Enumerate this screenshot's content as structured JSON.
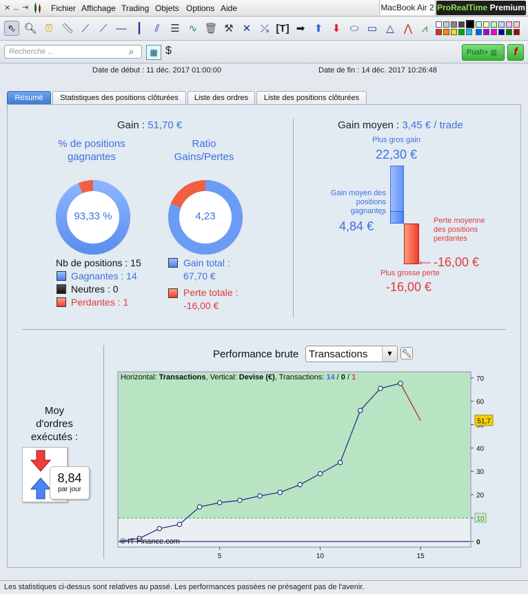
{
  "menubar": {
    "items": [
      "Fichier",
      "Affichage",
      "Trading",
      "Objets",
      "Options",
      "Aide"
    ],
    "device": "MacBook Air 2",
    "brand": {
      "green": "ProRealTime",
      "white": "Premium"
    }
  },
  "search": {
    "placeholder": "Recherche ..."
  },
  "push_label": "Push+",
  "f_label": "f",
  "dates": {
    "start": "Date de début :  11 déc. 2017 01:00:00",
    "end": "Date de fin :  14 déc. 2017 10:26:48"
  },
  "tabs": [
    "Résumé",
    "Statistiques des positions clôturées",
    "Liste des ordres",
    "Liste des positions clôturées"
  ],
  "gain": {
    "label": "Gain : ",
    "value": "51,70 €"
  },
  "pct_positions": {
    "title": "% de positions gagnantes",
    "value": "93,33 %",
    "fraction": 0.9333
  },
  "ratio": {
    "title": "Ratio Gains/Pertes",
    "value": "4,23",
    "fraction": 0.809
  },
  "positions": {
    "count_label": "Nb de positions : 15",
    "gagnantes": "Gagnantes : 14",
    "neutres": "Neutres : 0",
    "perdantes": "Perdantes : 1"
  },
  "totals": {
    "gain_total": "Gain total :",
    "gain_total_val": "67,70 €",
    "perte_totale": "Perte totale :",
    "perte_totale_val": "-16,00 €"
  },
  "gain_moyen": {
    "label": "Gain moyen : ",
    "value": "3,45 € / trade",
    "plus_gros_gain_label": "Plus gros gain",
    "plus_gros_gain": "22,30 €",
    "gain_moyen_pos_label": "Gain moyen des positions gagnantes",
    "gain_moyen_pos": "4,84 €",
    "perte_moyenne_label": "Perte moyenne des positions perdantes",
    "perte_moyenne": "-16,00 €",
    "plus_grosse_perte_label": "Plus grosse perte",
    "plus_grosse_perte": "-16,00 €"
  },
  "moy_ordres": {
    "label": "Moy d'ordres exécutés :",
    "value": "8,84",
    "unit": "par jour"
  },
  "perf": {
    "label": "Performance brute",
    "selected": "Transactions"
  },
  "chart_header": {
    "h_label": "Horizontal: ",
    "h_value": "Transactions",
    "v_label": ", Vertical: ",
    "v_value": "Devise (€)",
    "t_label": ", Transactions: ",
    "t_win": "14",
    "sep1": " / ",
    "t_neutral": "0",
    "sep2": " / ",
    "t_loss": "1"
  },
  "copyright": "© IT-Finance.com",
  "status_text": "Les statistiques ci-dessus sont relatives au passé. Les performances passées ne présagent pas de l'avenir.",
  "colors": {
    "gain": "#3f6fe0",
    "loss": "#e23a3a",
    "chart_bg": "#b8e4c4",
    "line": "#1a2a7a",
    "last_seg": "#aa2222"
  },
  "chart_data": {
    "type": "line",
    "x": [
      0,
      1,
      2,
      3,
      4,
      5,
      6,
      7,
      8,
      9,
      10,
      11,
      12,
      13,
      14,
      15
    ],
    "y": [
      0,
      1.3,
      5.5,
      7.3,
      14.8,
      16.6,
      17.6,
      19.5,
      21,
      24.3,
      29,
      33.8,
      56.1,
      65.5,
      67.7,
      51.7
    ],
    "xticks": [
      5,
      10,
      15
    ],
    "yticks": [
      0,
      10,
      20,
      30,
      40,
      50,
      60,
      70
    ],
    "xlim": [
      0,
      17.5
    ],
    "ylim": [
      -3,
      72
    ],
    "threshold": 10,
    "threshold_label": "10",
    "last_value_label": "51,7",
    "grid": false
  }
}
